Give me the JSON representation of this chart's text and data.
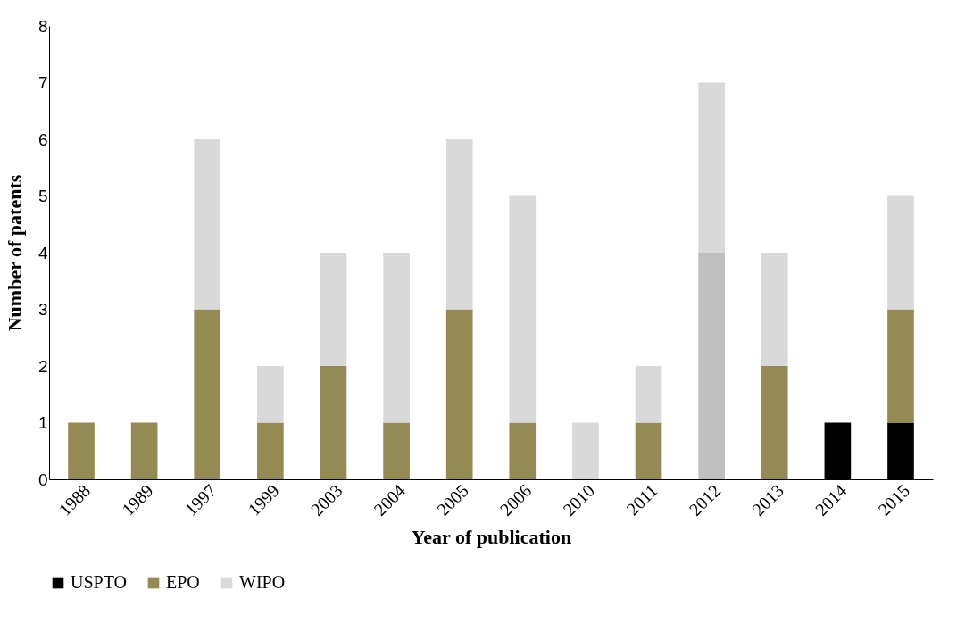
{
  "chart_data": {
    "type": "bar",
    "stacked": true,
    "xlabel": "Year of publication",
    "ylabel": "Number of patents",
    "categories": [
      "1988",
      "1989",
      "1997",
      "1999",
      "2003",
      "2004",
      "2005",
      "2006",
      "2010",
      "2011",
      "2012",
      "2013",
      "2014",
      "2015"
    ],
    "series": [
      {
        "name": "USPTO",
        "color": "#000000",
        "values": [
          null,
          null,
          null,
          null,
          null,
          null,
          null,
          null,
          null,
          null,
          null,
          null,
          1,
          1
        ]
      },
      {
        "name": "EPO",
        "color": "#948a54",
        "values": [
          1,
          1,
          3,
          1,
          2,
          1,
          3,
          1,
          null,
          1,
          null,
          2,
          null,
          2
        ]
      },
      {
        "color": "#bfbfbf",
        "values": [
          null,
          null,
          null,
          null,
          null,
          null,
          null,
          null,
          null,
          null,
          4,
          null,
          null,
          null
        ]
      },
      {
        "name": "WIPO",
        "color": "#d9d9d9",
        "values": [
          null,
          null,
          3,
          1,
          2,
          3,
          3,
          4,
          1,
          1,
          3,
          2,
          null,
          2
        ]
      }
    ],
    "ylim": [
      0,
      8
    ],
    "yticks": [
      0,
      1,
      2,
      3,
      4,
      5,
      6,
      7,
      8
    ],
    "grid": false,
    "legend": "bottom"
  }
}
